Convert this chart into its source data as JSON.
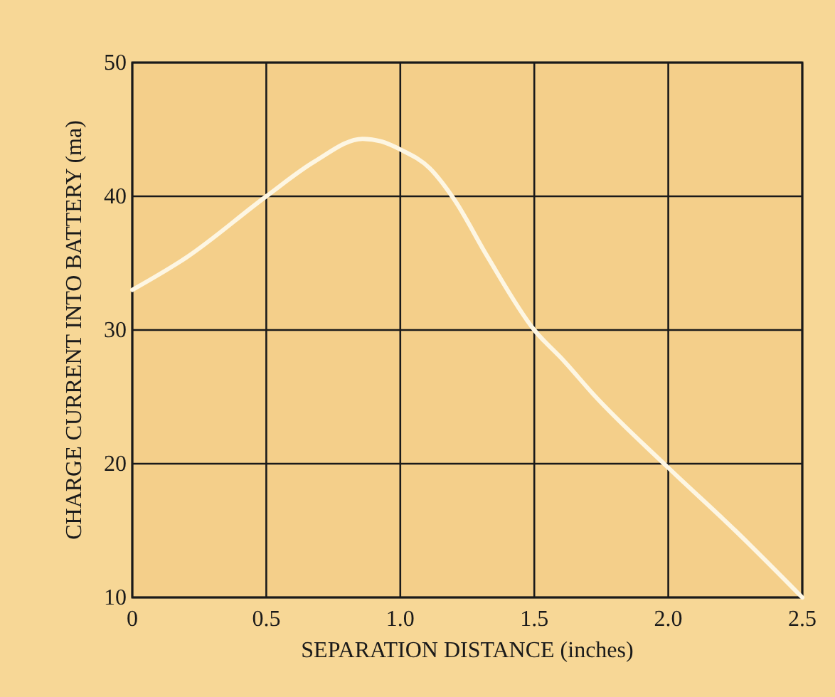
{
  "chart_data": {
    "type": "line",
    "xlabel": "SEPARATION DISTANCE (inches)",
    "ylabel": "CHARGE CURRENT INTO BATTERY (ma)",
    "series": [
      {
        "color": "#fdf6e3",
        "x": [
          0,
          0.2,
          0.5,
          0.68,
          0.86,
          0.93,
          1.0,
          1.11,
          1.2,
          1.325,
          1.5,
          1.61,
          1.72,
          2.0,
          2.25,
          2.5
        ],
        "values": [
          33,
          35.4,
          40,
          42.6,
          44.3,
          44.1,
          43.5,
          42.1,
          39.8,
          35.5,
          30,
          27.7,
          25.2,
          19.7,
          15,
          10
        ]
      }
    ],
    "xlim": [
      0,
      2.5
    ],
    "xticks": [
      0,
      0.5,
      {
        "value": 1,
        "label": "1.0"
      },
      1.5,
      {
        "value": 2,
        "label": "2.0"
      },
      2.5
    ],
    "ylim": [
      10,
      50
    ],
    "yticks": [
      10,
      20,
      30,
      40,
      50
    ],
    "grid": true,
    "marker": "none",
    "line_style": "solid"
  }
}
